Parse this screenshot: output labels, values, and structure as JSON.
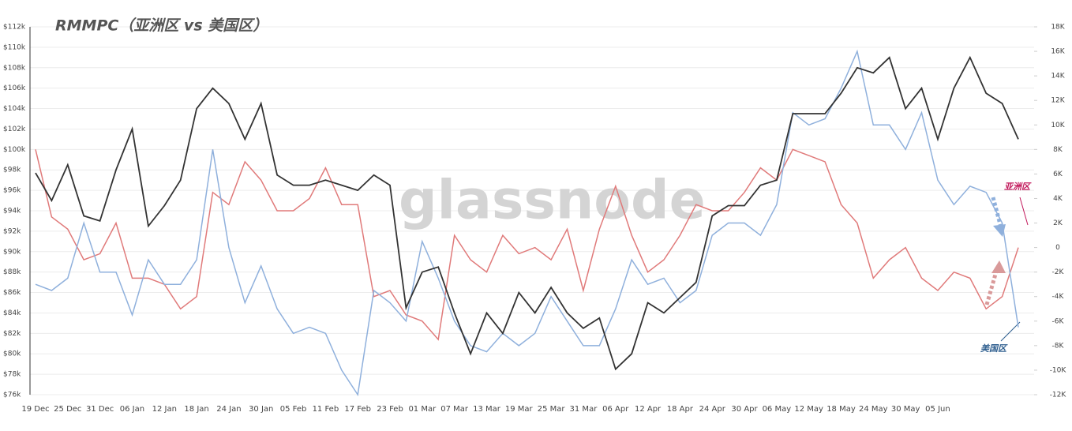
{
  "chart_data": {
    "type": "line",
    "title": "RMMPC（亚洲区 vs 美国区）",
    "watermark": "glassnode",
    "categories": [
      "19 Dec",
      null,
      "25 Dec",
      null,
      "31 Dec",
      null,
      "06 Jan",
      null,
      "12 Jan",
      null,
      "18 Jan",
      null,
      "24 Jan",
      null,
      "30 Jan",
      null,
      "05 Feb",
      null,
      "11 Feb",
      null,
      "17 Feb",
      null,
      "23 Feb",
      null,
      "01 Mar",
      null,
      "07 Mar",
      null,
      "13 Mar",
      null,
      "19 Mar",
      null,
      "25 Mar",
      null,
      "31 Mar",
      null,
      "06 Apr",
      null,
      "12 Apr",
      null,
      "18 Apr",
      null,
      "24 Apr",
      null,
      "30 Apr",
      null,
      "06 May",
      null,
      "12 May",
      null,
      "18 May",
      null,
      "24 May",
      null,
      "30 May",
      null,
      "05 Jun",
      null,
      null,
      null,
      null,
      null
    ],
    "ylim": [
      76,
      112
    ],
    "yticks": [
      {
        "value": 76,
        "label": "$76k"
      },
      {
        "value": 78,
        "label": "$78k"
      },
      {
        "value": 80,
        "label": "$80k"
      },
      {
        "value": 82,
        "label": "$82k"
      },
      {
        "value": 84,
        "label": "$84k"
      },
      {
        "value": 86,
        "label": "$86k"
      },
      {
        "value": 88,
        "label": "$88k"
      },
      {
        "value": 90,
        "label": "$90k"
      },
      {
        "value": 92,
        "label": "$92k"
      },
      {
        "value": 94,
        "label": "$94k"
      },
      {
        "value": 96,
        "label": "$96k"
      },
      {
        "value": 98,
        "label": "$98k"
      },
      {
        "value": 100,
        "label": "$100k"
      },
      {
        "value": 102,
        "label": "$102k"
      },
      {
        "value": 104,
        "label": "$104k"
      },
      {
        "value": 106,
        "label": "$106k"
      },
      {
        "value": 108,
        "label": "$108k"
      },
      {
        "value": 110,
        "label": "$110k"
      },
      {
        "value": 112,
        "label": "$112k"
      }
    ],
    "y2lim": [
      -12,
      18
    ],
    "y2ticks": [
      {
        "value": -12,
        "label": "-12K"
      },
      {
        "value": -10,
        "label": "-10K"
      },
      {
        "value": -8,
        "label": "-8K"
      },
      {
        "value": -6,
        "label": "-6K"
      },
      {
        "value": -4,
        "label": "-4K"
      },
      {
        "value": -2,
        "label": "-2K"
      },
      0,
      {
        "value": 2,
        "label": "2K"
      },
      {
        "value": 4,
        "label": "4K"
      },
      {
        "value": 6,
        "label": "6K"
      },
      {
        "value": 8,
        "label": "8K"
      },
      {
        "value": 10,
        "label": "10K"
      },
      {
        "value": 12,
        "label": "12K"
      },
      {
        "value": 14,
        "label": "14K"
      },
      {
        "value": 16,
        "label": "16K"
      },
      {
        "value": 18,
        "label": "18K"
      }
    ],
    "grid": true,
    "series": [
      {
        "color": "#333333",
        "values": [
          97.7,
          95,
          98.5,
          93.5,
          93,
          98,
          102,
          92.5,
          94.5,
          97,
          104,
          106,
          104.5,
          101,
          104.5,
          97.5,
          96.5,
          96.5,
          97,
          96.5,
          96,
          97.5,
          96.5,
          84.5,
          88,
          88.5,
          84,
          80,
          84,
          82,
          86,
          84,
          86.5,
          84,
          82.5,
          83.5,
          78.5,
          80,
          85,
          84,
          85.5,
          87,
          93.5,
          94.5,
          94.5,
          96.5,
          97,
          103.5,
          103.5,
          103.5,
          105.5,
          108,
          107.5,
          109,
          104,
          106,
          101,
          106,
          109,
          105.5,
          104.5,
          101
        ]
      },
      {
        "name": "亚洲区",
        "axis": "y2",
        "color": "#e07a7a",
        "values": [
          8,
          2.5,
          1.5,
          -1,
          -0.5,
          2,
          -2.5,
          -2.5,
          -3,
          -5,
          -4,
          4.5,
          3.5,
          7,
          5.5,
          3,
          3,
          4,
          6.5,
          3.5,
          3.5,
          -4,
          -3.5,
          -5.5,
          -6,
          -7.5,
          1,
          -1,
          -2,
          1,
          -0.5,
          0,
          -1,
          1.5,
          -3.5,
          1.5,
          5,
          1,
          -2,
          -1,
          1,
          3.5,
          3,
          3,
          4.5,
          6.5,
          5.5,
          8,
          7.5,
          7,
          3.5,
          2,
          -2.5,
          -1,
          0,
          -2.5,
          -3.5,
          -2,
          -2.5,
          -5,
          -4,
          0
        ]
      },
      {
        "name": "美国区",
        "axis": "y2",
        "color": "#8fb0dc",
        "values": [
          -3,
          -3.5,
          -2.5,
          2,
          -2,
          -2,
          -5.5,
          -1,
          -3,
          -3,
          -1,
          8,
          0,
          -4.5,
          -1.5,
          -5,
          -7,
          -6.5,
          -7,
          -10,
          -12,
          -3.5,
          -4.5,
          -6,
          0.5,
          -2.5,
          -6,
          -8,
          -8.5,
          -7,
          -8,
          -7,
          -4,
          -6,
          -8,
          -8,
          -5,
          -1,
          -3,
          -2.5,
          -4.5,
          -3.5,
          1,
          2,
          2,
          1,
          3.5,
          11,
          10,
          10.5,
          13,
          16,
          10,
          10,
          8,
          11,
          5.5,
          3.5,
          5,
          4.5,
          2,
          -6.5
        ]
      }
    ]
  }
}
